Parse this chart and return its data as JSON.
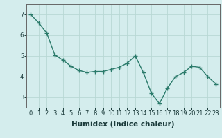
{
  "x": [
    0,
    1,
    2,
    3,
    4,
    5,
    6,
    7,
    8,
    9,
    10,
    11,
    12,
    13,
    14,
    15,
    16,
    17,
    18,
    19,
    20,
    21,
    22,
    23
  ],
  "y": [
    7.0,
    6.6,
    6.1,
    5.05,
    4.8,
    4.5,
    4.3,
    4.2,
    4.25,
    4.25,
    4.35,
    4.45,
    4.65,
    5.0,
    4.2,
    3.2,
    2.7,
    3.45,
    4.0,
    4.2,
    4.5,
    4.45,
    4.0,
    3.65
  ],
  "line_color": "#2a7a6a",
  "marker": "+",
  "marker_size": 4,
  "linewidth": 1.0,
  "xlabel": "Humidex (Indice chaleur)",
  "xlabel_fontsize": 7.5,
  "ylim": [
    2.5,
    7.5
  ],
  "xlim": [
    -0.5,
    23.5
  ],
  "yticks": [
    3,
    4,
    5,
    6,
    7
  ],
  "xticks": [
    0,
    1,
    2,
    3,
    4,
    5,
    6,
    7,
    8,
    9,
    10,
    11,
    12,
    13,
    14,
    15,
    16,
    17,
    18,
    19,
    20,
    21,
    22,
    23
  ],
  "tick_fontsize": 6,
  "bg_color": "#d4eded",
  "grid_color": "#b8d8d4",
  "axes_color": "#666666"
}
